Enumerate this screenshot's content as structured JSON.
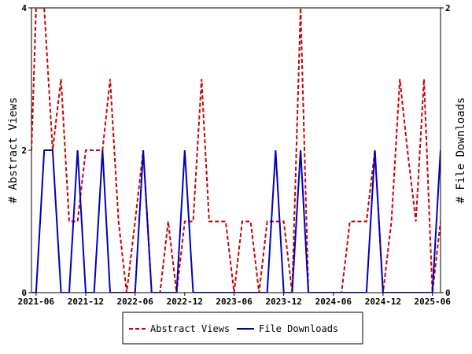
{
  "chart_data": {
    "type": "line",
    "title": "",
    "xlabel": "",
    "y_left_label": "# Abstract Views",
    "y_right_label": "# File Downloads",
    "x_ticks": [
      "2021-06",
      "2021-12",
      "2022-06",
      "2022-12",
      "2023-06",
      "2023-12",
      "2024-06",
      "2024-12",
      "2025-06"
    ],
    "y_left_ticks": [
      "0",
      "2",
      "4"
    ],
    "y_right_ticks": [
      "0",
      "2"
    ],
    "y_left_range": [
      0,
      4
    ],
    "y_right_range": [
      0,
      2
    ],
    "grid": false,
    "legend_position": "bottom-center",
    "x": [
      "2021-05-15",
      "2021-06-01",
      "2021-07-01",
      "2021-08-01",
      "2021-09-01",
      "2021-10-01",
      "2021-11-01",
      "2021-12-01",
      "2022-01-01",
      "2022-02-01",
      "2022-03-01",
      "2022-04-01",
      "2022-05-01",
      "2022-06-01",
      "2022-07-01",
      "2022-08-01",
      "2022-09-01",
      "2022-10-01",
      "2022-11-01",
      "2022-12-01",
      "2023-01-01",
      "2023-02-01",
      "2023-03-01",
      "2023-04-01",
      "2023-05-01",
      "2023-06-01",
      "2023-07-01",
      "2023-08-01",
      "2023-09-01",
      "2023-10-01",
      "2023-11-01",
      "2023-12-01",
      "2024-01-01",
      "2024-02-01",
      "2024-03-01",
      "2024-04-01",
      "2024-05-01",
      "2024-06-01",
      "2024-07-01",
      "2024-08-01",
      "2024-09-01",
      "2024-10-01",
      "2024-11-01",
      "2024-12-01",
      "2025-01-01",
      "2025-02-01",
      "2025-03-01",
      "2025-04-01",
      "2025-05-01",
      "2025-06-01",
      "2025-07-01"
    ],
    "series": [
      {
        "name": "Abstract Views",
        "axis": "left",
        "color": "#cc0000",
        "style": "dashed",
        "values": [
          2,
          4,
          4,
          2,
          3,
          1,
          1,
          2,
          2,
          2,
          3,
          1,
          0,
          1,
          2,
          0,
          0,
          1,
          0,
          1,
          1,
          3,
          1,
          1,
          1,
          0,
          1,
          1,
          0,
          1,
          1,
          1,
          0,
          4,
          0,
          0,
          0,
          0,
          0,
          1,
          1,
          1,
          2,
          0,
          1,
          3,
          2,
          1,
          3,
          0,
          1
        ]
      },
      {
        "name": "File Downloads",
        "axis": "right",
        "color": "#0000bb",
        "style": "solid",
        "values": [
          0,
          0,
          1,
          1,
          0,
          0,
          1,
          0,
          0,
          1,
          0,
          0,
          0,
          0,
          1,
          0,
          0,
          0,
          0,
          1,
          0,
          0,
          0,
          0,
          0,
          0,
          0,
          0,
          0,
          0,
          1,
          0,
          0,
          1,
          0,
          0,
          0,
          0,
          0,
          0,
          0,
          0,
          1,
          0,
          0,
          0,
          0,
          0,
          0,
          0,
          1
        ]
      }
    ]
  }
}
